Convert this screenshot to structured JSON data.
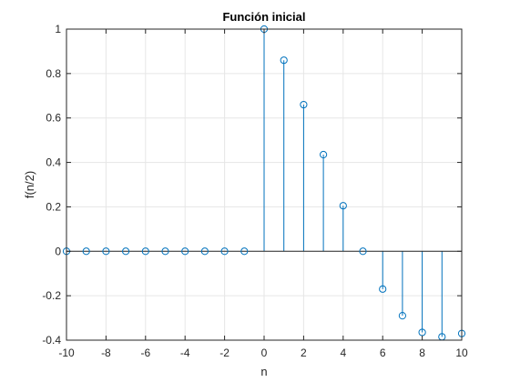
{
  "chart_data": {
    "type": "stem",
    "title": "Función inicial",
    "xlabel": "n",
    "ylabel": "f(n/2)",
    "xlim": [
      -10,
      10
    ],
    "ylim": [
      -0.4,
      1
    ],
    "xticks": [
      -10,
      -8,
      -6,
      -4,
      -2,
      0,
      2,
      4,
      6,
      8,
      10
    ],
    "yticks": [
      -0.4,
      -0.2,
      0,
      0.2,
      0.4,
      0.6,
      0.8,
      1
    ],
    "xtick_labels": [
      "-10",
      "-8",
      "-6",
      "-4",
      "-2",
      "0",
      "2",
      "4",
      "6",
      "8",
      "10"
    ],
    "ytick_labels": [
      "-0.4",
      "-0.2",
      "0",
      "0.2",
      "0.4",
      "0.6",
      "0.8",
      "1"
    ],
    "grid": true,
    "box": true,
    "series": [
      {
        "color": "#0072bd",
        "x": [
          -10,
          -9,
          -8,
          -7,
          -6,
          -5,
          -4,
          -3,
          -2,
          -1,
          0,
          1,
          2,
          3,
          4,
          5,
          6,
          7,
          8,
          9,
          10
        ],
        "values": [
          0,
          0,
          0,
          0,
          0,
          0,
          0,
          0,
          0,
          0,
          1,
          0.86,
          0.66,
          0.435,
          0.205,
          0,
          -0.17,
          -0.29,
          -0.365,
          -0.385,
          -0.37
        ]
      }
    ]
  }
}
